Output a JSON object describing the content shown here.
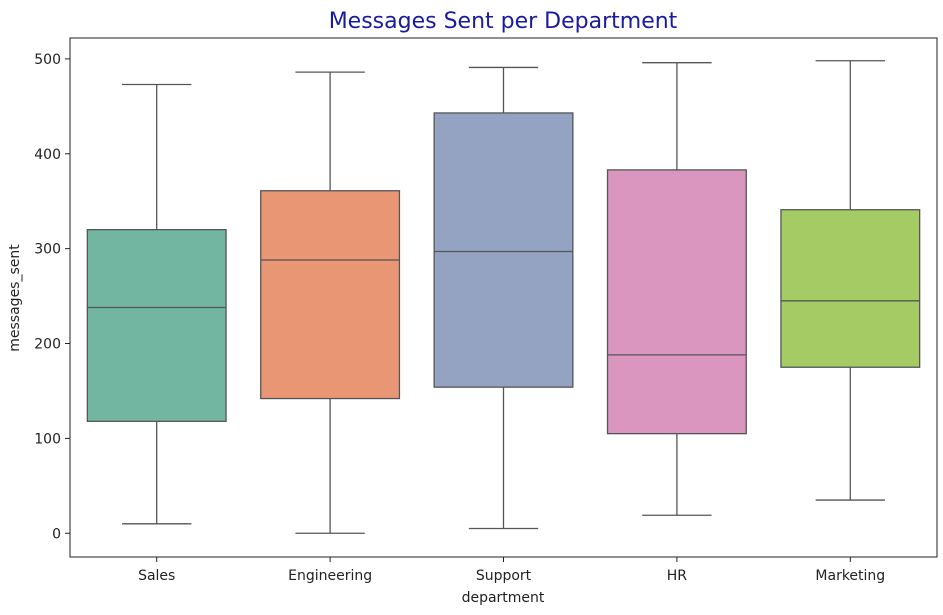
{
  "chart_data": {
    "type": "box",
    "title": "Messages Sent per Department",
    "title_color": "#1a1aa0",
    "xlabel": "department",
    "ylabel": "messages_sent",
    "ylim": [
      -25,
      522
    ],
    "yticks": [
      "0",
      "100",
      "200",
      "300",
      "400",
      "500"
    ],
    "grid": false,
    "categories": [
      "Sales",
      "Engineering",
      "Support",
      "HR",
      "Marketing"
    ],
    "boxes": [
      {
        "name": "Sales",
        "whisker_low": 10,
        "q1": 118,
        "median": 238,
        "q3": 320,
        "whisker_high": 473,
        "color": "#72b6a1"
      },
      {
        "name": "Engineering",
        "whisker_low": 0,
        "q1": 142,
        "median": 288,
        "q3": 361,
        "whisker_high": 486,
        "color": "#e99675"
      },
      {
        "name": "Support",
        "whisker_low": 5,
        "q1": 154,
        "median": 297,
        "q3": 443,
        "whisker_high": 491,
        "color": "#95a3c3"
      },
      {
        "name": "HR",
        "whisker_low": 19,
        "q1": 105,
        "median": 188,
        "q3": 383,
        "whisker_high": 496,
        "color": "#db96c0"
      },
      {
        "name": "Marketing",
        "whisker_low": 35,
        "q1": 175,
        "median": 245,
        "q3": 341,
        "whisker_high": 498,
        "color": "#a4cb64"
      }
    ],
    "line_color": "#555555"
  }
}
